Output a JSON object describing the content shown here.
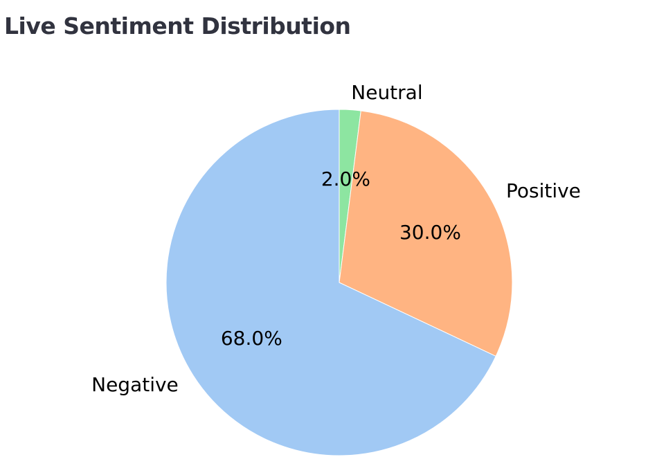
{
  "page": {
    "title": "Live Sentiment Distribution"
  },
  "chart_data": {
    "type": "pie",
    "categories": [
      "Neutral",
      "Positive",
      "Negative"
    ],
    "values": [
      2.0,
      30.0,
      68.0
    ],
    "value_labels": [
      "2.0%",
      "30.0%",
      "68.0%"
    ],
    "colors": [
      "#8de5a1",
      "#ffb482",
      "#a1c9f4"
    ],
    "start_angle_deg": 90,
    "direction": "clockwise",
    "title": "",
    "legend": "none"
  }
}
